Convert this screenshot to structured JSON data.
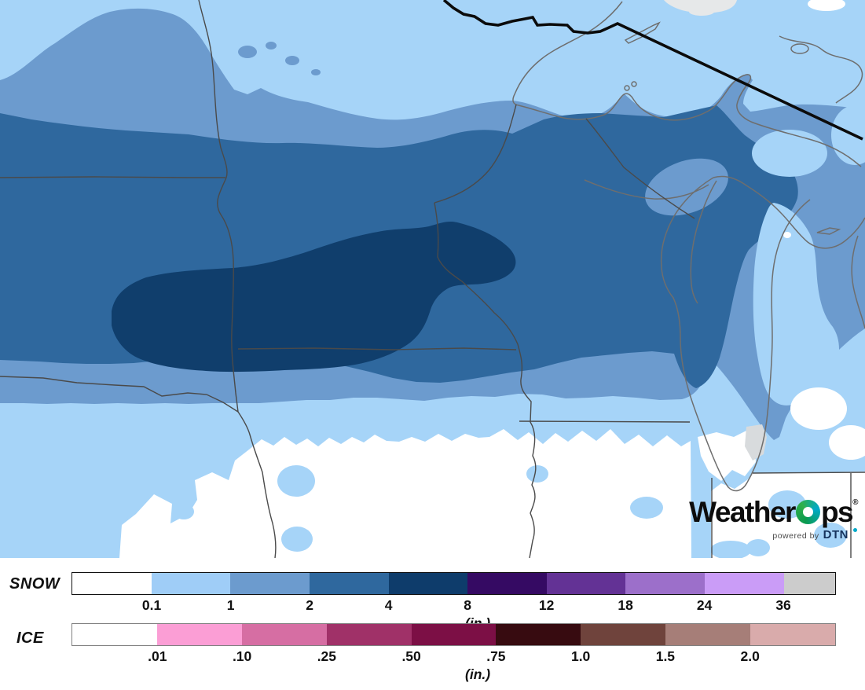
{
  "map": {
    "description": "Snowfall accumulation contour map, Upper Midwest / Great Lakes region",
    "palette": {
      "snow_trace": "#a6d4f8",
      "snow_1in": "#6c9bce",
      "snow_2in": "#2f689e",
      "snow_4in": "#103e6c",
      "no_snow": "#ffffff",
      "no_data_gray": "#e6e8e9",
      "lake_gray": "#d8dbdd",
      "state_border": "#4a4a4a",
      "coastline": "#6e6e6e",
      "international_border": "#0b0b0b"
    }
  },
  "logo": {
    "brand_weather": "Weather",
    "brand_ps": "ps",
    "registered": "®",
    "powered_by": "powered by",
    "dtn": "DTN",
    "colors": {
      "ring_green": "#30b04a",
      "ring_teal": "#00a9c9",
      "dtn_navy": "#16325c",
      "text": "#0d0d0d"
    }
  },
  "legend": {
    "snow": {
      "label": "SNOW",
      "units": "(in.)",
      "tick_labels": [
        "0.1",
        "1",
        "2",
        "4",
        "8",
        "12",
        "18",
        "24",
        "36"
      ],
      "segment_colors": [
        "#ffffff",
        "#9fcdf7",
        "#6c9bce",
        "#2f689e",
        "#0e3c6b",
        "#350a63",
        "#633295",
        "#9c6fca",
        "#ca9cf7",
        "#cccccc"
      ],
      "last_segment_ratio": 0.65,
      "border_color": "#111111"
    },
    "ice": {
      "label": "ICE",
      "units": "(in.)",
      "tick_labels": [
        ".01",
        ".10",
        ".25",
        ".50",
        ".75",
        "1.0",
        "1.5",
        "2.0"
      ],
      "segment_colors": [
        "#ffffff",
        "#fb9ed5",
        "#d66ea3",
        "#a03168",
        "#7c0f45",
        "#370b10",
        "#6f433c",
        "#a67e78",
        "#d9abab"
      ],
      "last_segment_ratio": 1,
      "border_color": "#808080"
    }
  }
}
